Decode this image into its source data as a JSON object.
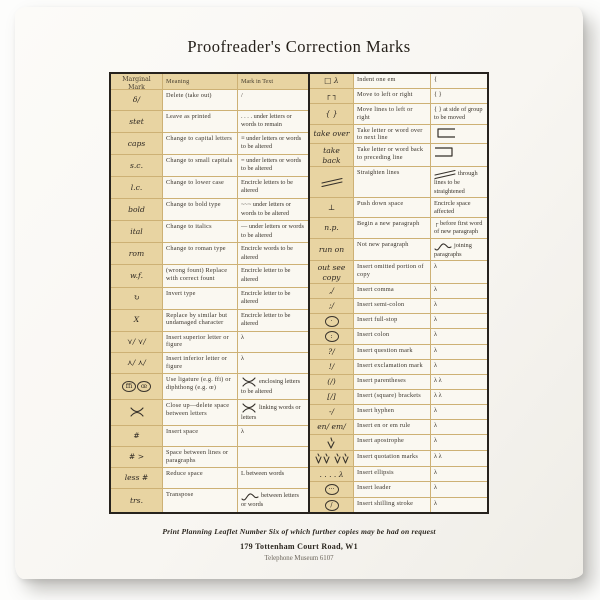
{
  "title": "Proofreader's Correction Marks",
  "palette": {
    "marginal_column_tan": "#e8d4a2",
    "rule_line": "#cdb175",
    "outer_border": "#26221d",
    "ink": "#3a342c",
    "towel": "#f8f6f2"
  },
  "table": {
    "headers": [
      "Marginal Mark",
      "Meaning",
      "Mark in Text"
    ],
    "left_rows": [
      {
        "margin": "δ/",
        "meaning": "Delete (take out)",
        "mark": "/"
      },
      {
        "margin": "stet",
        "meaning": "Leave as printed",
        "mark": ". . . .  under letters or words to remain"
      },
      {
        "margin": "caps",
        "meaning": "Change to capital letters",
        "mark": "≡  under letters or words to be altered"
      },
      {
        "margin": "s.c.",
        "meaning": "Change to small capitals",
        "mark": "=  under letters or words to be altered"
      },
      {
        "margin": "l.c.",
        "meaning": "Change to lower case",
        "mark": "Encircle letters to be altered"
      },
      {
        "margin": "bold",
        "meaning": "Change to bold type",
        "mark": "~~~  under letters or words to be altered"
      },
      {
        "margin": "ital",
        "meaning": "Change to italics",
        "mark": "—  under letters or words to be altered"
      },
      {
        "margin": "rom",
        "meaning": "Change to roman type",
        "mark": "Encircle words to be altered"
      },
      {
        "margin": "w.f.",
        "meaning": "(wrong fount) Replace with correct fount",
        "mark": "Encircle letter to be altered"
      },
      {
        "margin": "↻",
        "meaning": "Invert type",
        "mark": "Encircle letter to be altered"
      },
      {
        "margin": "X",
        "meaning": "Replace by similar but undamaged character",
        "mark": "Encircle letter to be altered"
      },
      {
        "margin": "⋎/ ⋎/",
        "meaning": "Insert superior letter or figure",
        "mark": "λ"
      },
      {
        "margin": "⋏/ ⋏/",
        "meaning": "Insert inferior letter or figure",
        "mark": "λ"
      },
      {
        "margin": {
          "circles": [
            "ﬃ",
            "œ"
          ]
        },
        "meaning": "Use ligature (e.g. ffi) or diphthong (e.g. œ)",
        "mark": {
          "icon": "close-up",
          "text": "enclosing letters to be altered"
        }
      },
      {
        "margin": {
          "icon": "close-up"
        },
        "meaning": "Close up—delete space between letters",
        "mark": {
          "icon": "close-up",
          "text": "linking words or letters"
        }
      },
      {
        "margin": "#",
        "meaning": "Insert space",
        "mark": "λ"
      },
      {
        "margin": "# >",
        "meaning": "Space between lines or paragraphs",
        "mark": ""
      },
      {
        "margin": "less #",
        "meaning": "Reduce space",
        "mark": "L  between words"
      },
      {
        "margin": "trs.",
        "meaning": "Transpose",
        "mark": {
          "icon": "s-curve",
          "text": "between letters or words"
        }
      }
    ],
    "right_rows": [
      {
        "margin": "□ λ",
        "meaning": "Indent one em",
        "mark": "{"
      },
      {
        "margin": "┌ ┐",
        "meaning": "Move to left or right",
        "mark": "{ }"
      },
      {
        "margin": "{ }",
        "meaning": "Move lines to left or right",
        "mark": "{ }  at side of group to be moved"
      },
      {
        "margin": "take over",
        "meaning": "Take letter or word over to next line",
        "mark": {
          "icon": "take-over-box"
        }
      },
      {
        "margin": "take back",
        "meaning": "Take letter or word back to preceding line",
        "mark": {
          "icon": "take-back-box"
        }
      },
      {
        "margin": {
          "icon": "straighten-lines"
        },
        "meaning": "Straighten lines",
        "mark": {
          "icon": "straighten-lines",
          "text": "through lines to be straightened"
        }
      },
      {
        "margin": "⊥",
        "meaning": "Push down space",
        "mark": "Encircle space affected"
      },
      {
        "margin": "n.p.",
        "meaning": "Begin a new paragraph",
        "mark": "┌  before first word of new paragraph"
      },
      {
        "margin": "run on",
        "meaning": "Not new paragraph",
        "mark": {
          "icon": "s-curve",
          "text": "joining paragraphs"
        }
      },
      {
        "margin": "out see copy",
        "meaning": "Insert omitted portion of copy",
        "mark": "λ"
      },
      {
        "margin": ",/",
        "meaning": "Insert comma",
        "mark": "λ"
      },
      {
        "margin": ";/",
        "meaning": "Insert semi-colon",
        "mark": "λ"
      },
      {
        "margin": {
          "circles": [
            "·"
          ]
        },
        "meaning": "Insert full-stop",
        "mark": "λ"
      },
      {
        "margin": {
          "circles": [
            ":"
          ]
        },
        "meaning": "Insert colon",
        "mark": "λ"
      },
      {
        "margin": "?/",
        "meaning": "Insert question mark",
        "mark": "λ"
      },
      {
        "margin": "!/",
        "meaning": "Insert exclamation mark",
        "mark": "λ"
      },
      {
        "margin": "(/)",
        "meaning": "Insert parentheses",
        "mark": "λ  λ"
      },
      {
        "margin": "[/]",
        "meaning": "Insert (square) brackets",
        "mark": "λ  λ"
      },
      {
        "margin": "-/",
        "meaning": "Insert hyphen",
        "mark": "λ"
      },
      {
        "margin": "en/ em/",
        "meaning": "Insert en or em rule",
        "mark": "λ"
      },
      {
        "margin": {
          "icon": "apostrophe-caret"
        },
        "meaning": "Insert apostrophe",
        "mark": "λ"
      },
      {
        "margin": {
          "icon": "quotation-carets"
        },
        "meaning": "Insert quotation marks",
        "mark": "λ  λ"
      },
      {
        "margin": ". . . . λ",
        "meaning": "Insert ellipsis",
        "mark": "λ"
      },
      {
        "margin": {
          "circles": [
            "···"
          ]
        },
        "meaning": "Insert leader",
        "mark": "λ"
      },
      {
        "margin": {
          "circles": [
            "/"
          ]
        },
        "meaning": "Insert shilling stroke",
        "mark": "λ"
      }
    ]
  },
  "footer": {
    "line1": "Print Planning Leaflet  Number Six of which further copies may be had on request",
    "line2": "179 Tottenham Court Road, W1",
    "line3": "Telephone Museum 6107"
  }
}
